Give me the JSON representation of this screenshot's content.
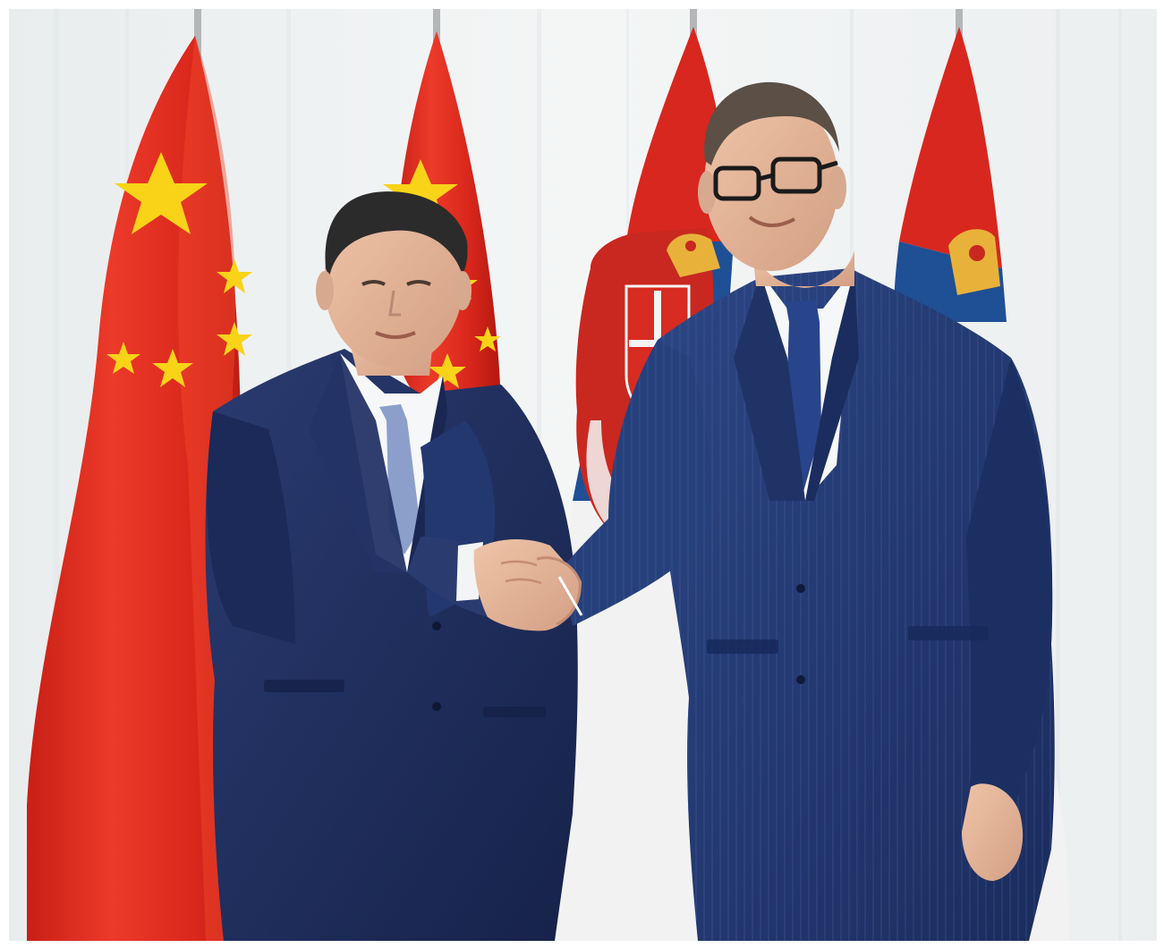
{
  "photo": {
    "subject": "two-men-handshake-flags",
    "colors": {
      "page_border": "#ffffff",
      "curtain": "#eef1f2",
      "china_red": "#e12a1f",
      "china_red_dark": "#b81a12",
      "china_star": "#f7d21a",
      "serbia_red": "#d8271e",
      "serbia_blue": "#1f4f95",
      "serbia_white": "#f4f4f4",
      "suit_navy": "#1f2e5e",
      "suit_navy_right": "#23396f",
      "shirt": "#f6f7f8",
      "tie_left": "#8a9ec9",
      "tie_right": "#27438a",
      "skin": "#e2b49a",
      "hair_left": "#2a2a2a",
      "hair_right": "#5a4e45",
      "flagpole": "#b9b9b9"
    },
    "icons": [
      "china-flag",
      "serbia-flag",
      "serbia-coat-of-arms"
    ]
  }
}
